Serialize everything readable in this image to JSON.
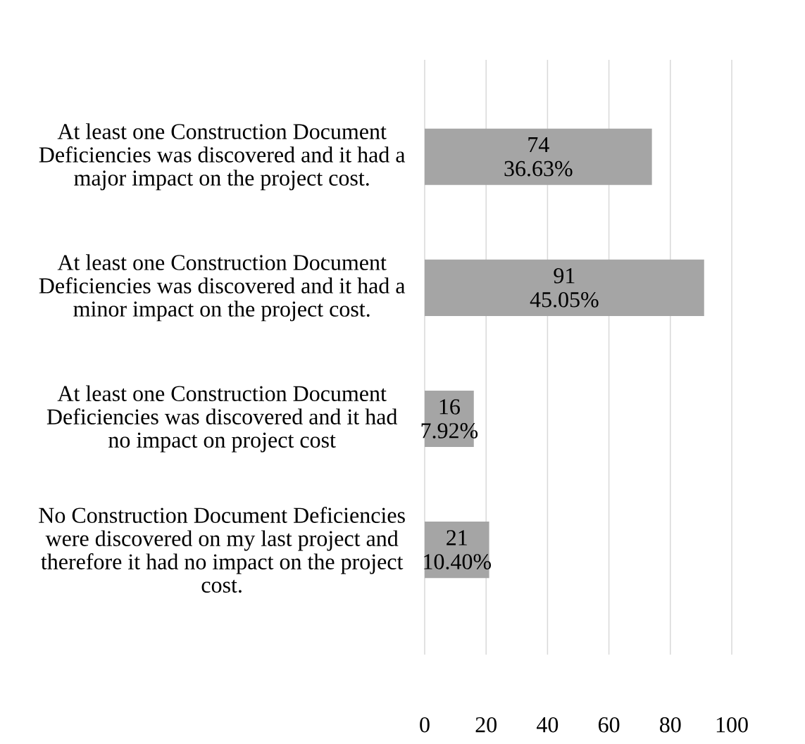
{
  "chart_data": {
    "type": "bar",
    "orientation": "horizontal",
    "categories": [
      "At least one Construction Document Deficiencies was discovered and it had a major impact on the project cost.",
      "At least one Construction Document Deficiencies was discovered and it had a minor impact on the project cost.",
      "At least one Construction Document Deficiencies was discovered and it had no impact on project cost",
      "No Construction Document Deficiencies were discovered on my last project and therefore it had no impact on the project cost."
    ],
    "values": [
      74,
      91,
      16,
      21
    ],
    "value_labels": [
      "74 36.63%",
      "91 45.05%",
      "16 7.92%",
      "21 10.40%"
    ],
    "color": "#a5a5a5",
    "xlim": [
      0,
      100
    ],
    "xticks": [
      0,
      20,
      40,
      60,
      80,
      100
    ],
    "grid": "x"
  }
}
